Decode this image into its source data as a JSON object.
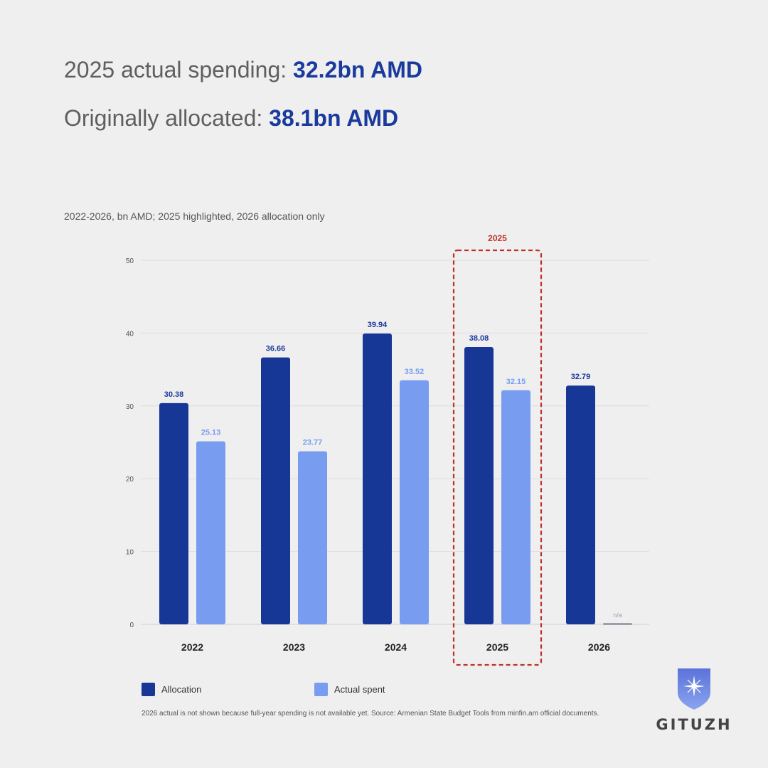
{
  "headline": {
    "actual_label": "2025 actual spending: ",
    "actual_value": "32.2bn AMD",
    "allocated_label": "Originally allocated: ",
    "allocated_value": "38.1bn AMD"
  },
  "subtitle": "2022-2026, bn AMD; 2025 highlighted, 2026 allocation only",
  "chart_data": {
    "type": "bar",
    "categories": [
      "2022",
      "2023",
      "2024",
      "2025",
      "2026"
    ],
    "series": [
      {
        "name": "Allocation",
        "values": [
          30.38,
          36.66,
          39.94,
          38.08,
          32.79
        ],
        "labels": [
          "30.38",
          "36.66",
          "39.94",
          "38.08",
          "32.79"
        ],
        "color": "#173796"
      },
      {
        "name": "Actual spent",
        "values": [
          25.13,
          23.77,
          33.52,
          32.15,
          null
        ],
        "labels": [
          "25.13",
          "23.77",
          "33.52",
          "32.15",
          "n/a"
        ],
        "color": "#789df0"
      }
    ],
    "yticks": [
      0,
      10,
      20,
      30,
      40,
      50
    ],
    "ylim": [
      0,
      50
    ],
    "grid": true,
    "highlight": {
      "category": "2025",
      "label": "2025",
      "color": "#c0302a"
    },
    "legend_position": "bottom-left"
  },
  "footnote": "2026 actual is not shown because full-year spending is not available yet. Source: Armenian State Budget Tools from minfin.am official documents.",
  "logo": {
    "text": "GITUZH",
    "icon": "shield-star-icon"
  },
  "colors": {
    "allocation": "#173796",
    "actual": "#789df0",
    "headline_value": "#1a3a9c",
    "highlight": "#c0302a",
    "na": "#9aa0ad"
  }
}
